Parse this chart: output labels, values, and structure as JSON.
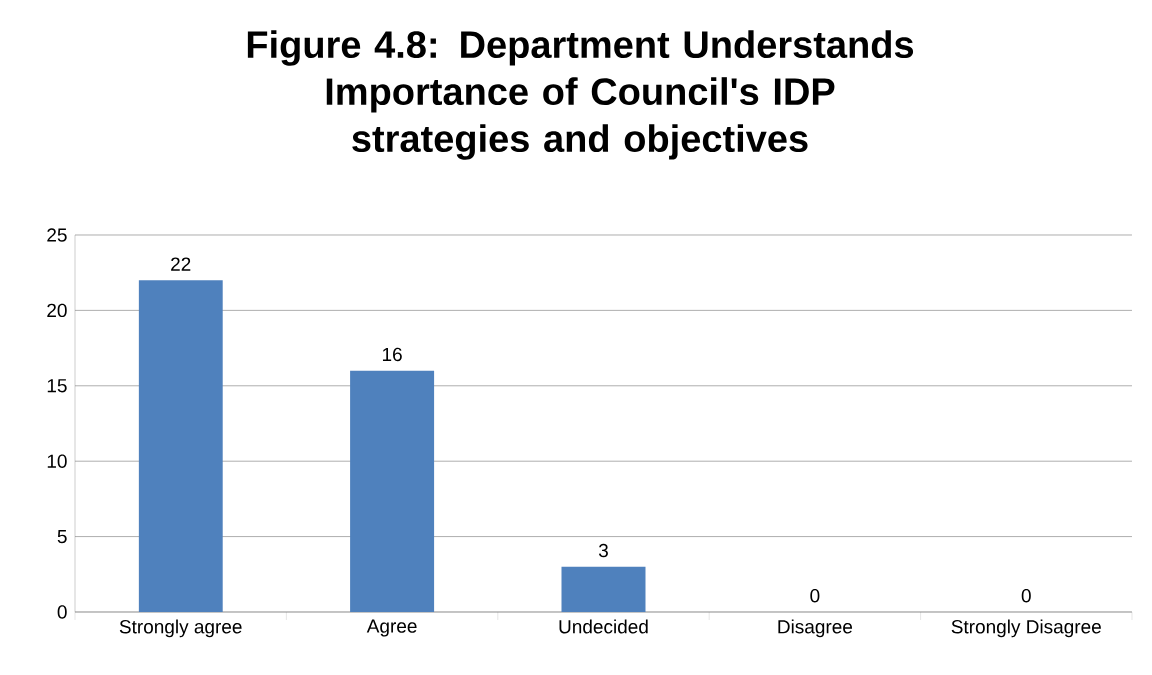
{
  "chart_data": {
    "type": "bar",
    "title": "Figure 4.8: Department Understands Importance of Council's IDP strategies and objectives",
    "categories": [
      "Strongly agree",
      "Agree",
      "Undecided",
      "Disagree",
      "Strongly Disagree"
    ],
    "values": [
      22,
      16,
      3,
      0,
      0
    ],
    "color": "#4f81bd",
    "ylim": [
      0,
      25
    ],
    "yticks": [
      0,
      5,
      10,
      15,
      20,
      25
    ],
    "grid": "y",
    "data_labels": true
  }
}
